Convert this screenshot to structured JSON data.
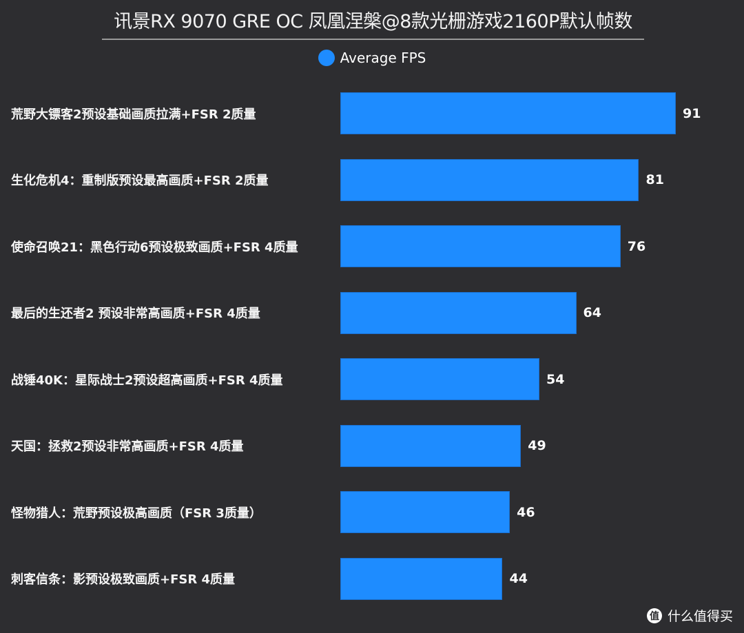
{
  "chart_data": {
    "type": "bar",
    "orientation": "horizontal",
    "title": "讯景RX 9070 GRE OC 凤凰涅槃@8款光栅游戏2160P默认帧数",
    "xlabel": "",
    "ylabel": "",
    "legend": {
      "position": "top-center",
      "entries": [
        "Average FPS"
      ]
    },
    "grid": false,
    "xlim": [
      0,
      91
    ],
    "categories": [
      "荒野大镖客2预设基础画质拉满+FSR 2质量",
      "生化危机4：重制版预设最高画质+FSR 2质量",
      "使命召唤21：黑色行动6预设极致画质+FSR 4质量",
      "最后的生还者2 预设非常高画质+FSR 4质量",
      "战锤40K：星际战士2预设超高画质+FSR 4质量",
      "天国：拯救2预设非常高画质+FSR 4质量",
      "怪物猎人：荒野预设极高画质（FSR 3质量）",
      "刺客信条：影预设极致画质+FSR 4质量"
    ],
    "series": [
      {
        "name": "Average FPS",
        "color": "#1e8cff",
        "values": [
          91,
          81,
          76,
          64,
          54,
          49,
          46,
          44
        ]
      }
    ]
  },
  "watermark": {
    "icon": "值",
    "text": "什么值得买"
  }
}
